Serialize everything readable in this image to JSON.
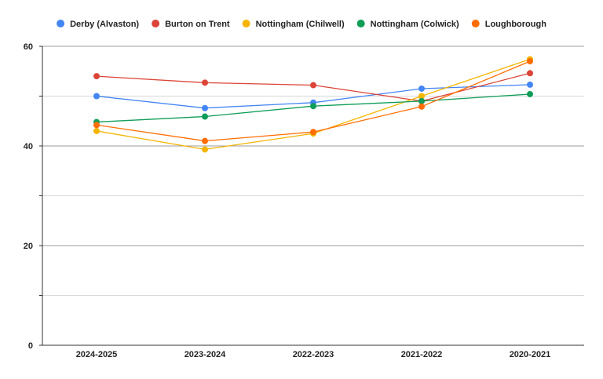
{
  "chart_data": {
    "type": "line",
    "categories": [
      "2024-2025",
      "2023-2024",
      "2022-2023",
      "2021-2022",
      "2020-2021"
    ],
    "ylim": [
      0,
      60
    ],
    "yticks": [
      0,
      20,
      40,
      60
    ],
    "grid": true,
    "legend_position": "top",
    "series": [
      {
        "name": "Derby (Alvaston)",
        "color": "#4285F4",
        "values": [
          50.0,
          47.6,
          48.7,
          51.5,
          52.3
        ]
      },
      {
        "name": "Burton on Trent",
        "color": "#DB4437",
        "values": [
          54.0,
          52.7,
          52.2,
          49.0,
          54.6
        ]
      },
      {
        "name": "Nottingham (Chilwell)",
        "color": "#F4B400",
        "values": [
          43.0,
          39.3,
          42.5,
          50.0,
          57.4
        ]
      },
      {
        "name": "Nottingham (Colwick)",
        "color": "#0F9D58",
        "values": [
          44.8,
          45.9,
          48.0,
          49.0,
          50.4
        ]
      },
      {
        "name": "Loughborough",
        "color": "#FF6D01",
        "values": [
          44.2,
          41.0,
          42.8,
          47.9,
          57.0
        ]
      }
    ]
  }
}
